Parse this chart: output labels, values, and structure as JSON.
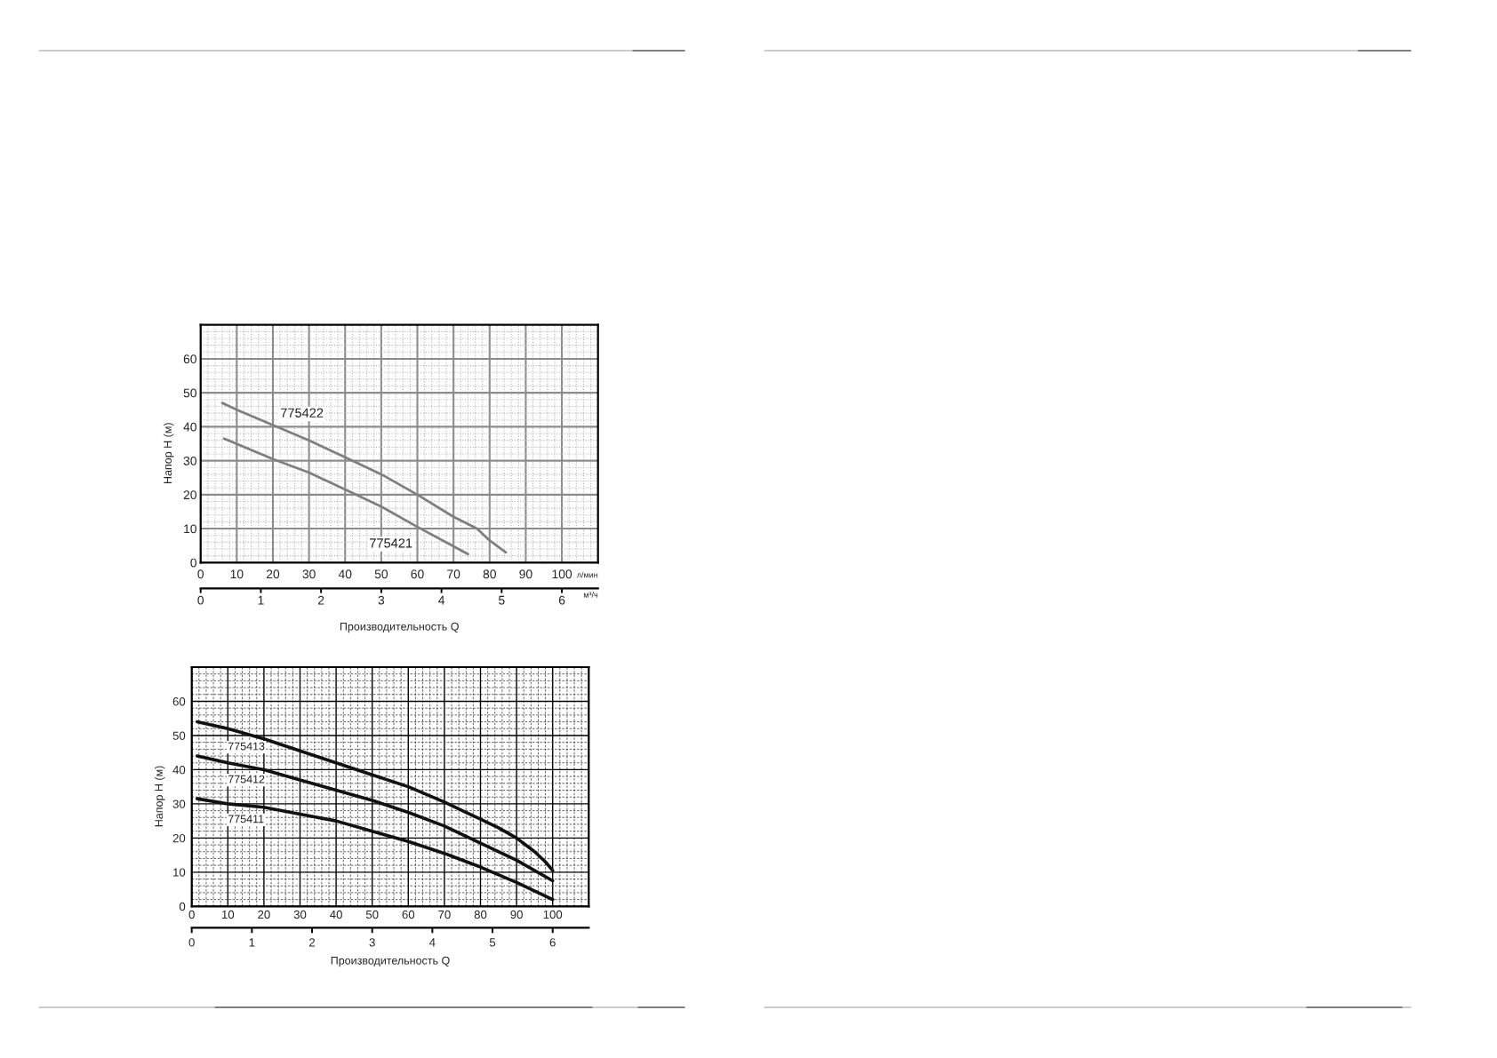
{
  "chart_data": [
    {
      "type": "line",
      "ylabel": "Напор H (м)",
      "xlabel": "л/мин",
      "x2label": "м³/ч",
      "annotations": [
        "Производительность Q"
      ],
      "grid": true,
      "xlim": [
        0,
        110
      ],
      "ylim": [
        0,
        70
      ],
      "x2lim": [
        0,
        6.6
      ],
      "xticks": [
        0,
        {
          "value": 2,
          "label": null
        },
        {
          "value": 4,
          "label": null
        },
        {
          "value": 6,
          "label": null
        },
        {
          "value": 8,
          "label": null
        },
        10,
        {
          "value": 12,
          "label": null
        },
        {
          "value": 14,
          "label": null
        },
        {
          "value": 16,
          "label": null
        },
        {
          "value": 18,
          "label": null
        },
        20,
        {
          "value": 22,
          "label": null
        },
        {
          "value": 24,
          "label": null
        },
        {
          "value": 26,
          "label": null
        },
        {
          "value": 28,
          "label": null
        },
        30,
        {
          "value": 32,
          "label": null
        },
        {
          "value": 34,
          "label": null
        },
        {
          "value": 36,
          "label": null
        },
        {
          "value": 38,
          "label": null
        },
        40,
        {
          "value": 42,
          "label": null
        },
        {
          "value": 44,
          "label": null
        },
        {
          "value": 46,
          "label": null
        },
        {
          "value": 48,
          "label": null
        },
        50,
        {
          "value": 52,
          "label": null
        },
        {
          "value": 54,
          "label": null
        },
        {
          "value": 56,
          "label": null
        },
        {
          "value": 58,
          "label": null
        },
        60,
        {
          "value": 62,
          "label": null
        },
        {
          "value": 64,
          "label": null
        },
        {
          "value": 66,
          "label": null
        },
        {
          "value": 68,
          "label": null
        },
        70,
        {
          "value": 72,
          "label": null
        },
        {
          "value": 74,
          "label": null
        },
        {
          "value": 76,
          "label": null
        },
        {
          "value": 78,
          "label": null
        },
        80,
        {
          "value": 82,
          "label": null
        },
        {
          "value": 84,
          "label": null
        },
        {
          "value": 86,
          "label": null
        },
        {
          "value": 88,
          "label": null
        },
        90,
        {
          "value": 92,
          "label": null
        },
        {
          "value": 94,
          "label": null
        },
        {
          "value": 96,
          "label": null
        },
        {
          "value": 98,
          "label": null
        },
        100,
        {
          "value": 102,
          "label": null
        },
        {
          "value": 104,
          "label": null
        },
        {
          "value": 106,
          "label": null
        },
        {
          "value": 108,
          "label": null
        }
      ],
      "yticks": [
        0,
        {
          "value": 2,
          "label": null
        },
        {
          "value": 4,
          "label": null
        },
        {
          "value": 6,
          "label": null
        },
        {
          "value": 8,
          "label": null
        },
        10,
        {
          "value": 12,
          "label": null
        },
        {
          "value": 14,
          "label": null
        },
        {
          "value": 16,
          "label": null
        },
        {
          "value": 18,
          "label": null
        },
        20,
        {
          "value": 22,
          "label": null
        },
        {
          "value": 24,
          "label": null
        },
        {
          "value": 26,
          "label": null
        },
        {
          "value": 28,
          "label": null
        },
        30,
        {
          "value": 32,
          "label": null
        },
        {
          "value": 34,
          "label": null
        },
        {
          "value": 36,
          "label": null
        },
        {
          "value": 38,
          "label": null
        },
        40,
        {
          "value": 42,
          "label": null
        },
        {
          "value": 44,
          "label": null
        },
        {
          "value": 46,
          "label": null
        },
        {
          "value": 48,
          "label": null
        },
        50,
        {
          "value": 52,
          "label": null
        },
        {
          "value": 54,
          "label": null
        },
        {
          "value": 56,
          "label": null
        },
        {
          "value": 58,
          "label": null
        },
        60,
        {
          "value": 62,
          "label": null
        },
        {
          "value": 64,
          "label": null
        },
        {
          "value": 66,
          "label": null
        },
        {
          "value": 68,
          "label": null
        }
      ],
      "x2ticks": [
        0,
        1,
        2,
        3,
        4,
        5,
        6
      ],
      "series": [
        {
          "name": "775422",
          "color": "#7f7f7f",
          "x": [
            6,
            10,
            20,
            30,
            43,
            50,
            60,
            70,
            76.5,
            80,
            84.5
          ],
          "values": [
            47,
            45,
            40.5,
            36,
            29.5,
            26,
            20,
            13.5,
            10,
            6.5,
            3
          ]
        },
        {
          "name": "775421",
          "color": "#7f7f7f",
          "x": [
            6.5,
            20,
            30,
            40,
            50,
            60,
            74
          ],
          "values": [
            36.5,
            30.5,
            26.5,
            21.5,
            16.5,
            10.5,
            2.5
          ]
        }
      ]
    },
    {
      "type": "line",
      "ylabel": "Напор H (м)",
      "annotations": [
        "Производительность Q"
      ],
      "grid": true,
      "xlim": [
        0,
        110
      ],
      "ylim": [
        0,
        70
      ],
      "x2lim": [
        0,
        6.6
      ],
      "xticks": [
        0,
        {
          "value": 2,
          "label": null
        },
        {
          "value": 4,
          "label": null
        },
        {
          "value": 6,
          "label": null
        },
        {
          "value": 8,
          "label": null
        },
        10,
        {
          "value": 12,
          "label": null
        },
        {
          "value": 14,
          "label": null
        },
        {
          "value": 16,
          "label": null
        },
        {
          "value": 18,
          "label": null
        },
        20,
        {
          "value": 22,
          "label": null
        },
        {
          "value": 24,
          "label": null
        },
        {
          "value": 26,
          "label": null
        },
        {
          "value": 28,
          "label": null
        },
        30,
        {
          "value": 32,
          "label": null
        },
        {
          "value": 34,
          "label": null
        },
        {
          "value": 36,
          "label": null
        },
        {
          "value": 38,
          "label": null
        },
        40,
        {
          "value": 42,
          "label": null
        },
        {
          "value": 44,
          "label": null
        },
        {
          "value": 46,
          "label": null
        },
        {
          "value": 48,
          "label": null
        },
        50,
        {
          "value": 52,
          "label": null
        },
        {
          "value": 54,
          "label": null
        },
        {
          "value": 56,
          "label": null
        },
        {
          "value": 58,
          "label": null
        },
        60,
        {
          "value": 62,
          "label": null
        },
        {
          "value": 64,
          "label": null
        },
        {
          "value": 66,
          "label": null
        },
        {
          "value": 68,
          "label": null
        },
        70,
        {
          "value": 72,
          "label": null
        },
        {
          "value": 74,
          "label": null
        },
        {
          "value": 76,
          "label": null
        },
        {
          "value": 78,
          "label": null
        },
        80,
        {
          "value": 82,
          "label": null
        },
        {
          "value": 84,
          "label": null
        },
        {
          "value": 86,
          "label": null
        },
        {
          "value": 88,
          "label": null
        },
        90,
        {
          "value": 92,
          "label": null
        },
        {
          "value": 94,
          "label": null
        },
        {
          "value": 96,
          "label": null
        },
        {
          "value": 98,
          "label": null
        },
        100,
        {
          "value": 102,
          "label": null
        },
        {
          "value": 104,
          "label": null
        },
        {
          "value": 106,
          "label": null
        },
        {
          "value": 108,
          "label": null
        }
      ],
      "yticks": [
        0,
        {
          "value": 2,
          "label": null
        },
        {
          "value": 4,
          "label": null
        },
        {
          "value": 6,
          "label": null
        },
        {
          "value": 8,
          "label": null
        },
        10,
        {
          "value": 12,
          "label": null
        },
        {
          "value": 14,
          "label": null
        },
        {
          "value": 16,
          "label": null
        },
        {
          "value": 18,
          "label": null
        },
        20,
        {
          "value": 22,
          "label": null
        },
        {
          "value": 24,
          "label": null
        },
        {
          "value": 26,
          "label": null
        },
        {
          "value": 28,
          "label": null
        },
        30,
        {
          "value": 32,
          "label": null
        },
        {
          "value": 34,
          "label": null
        },
        {
          "value": 36,
          "label": null
        },
        {
          "value": 38,
          "label": null
        },
        40,
        {
          "value": 42,
          "label": null
        },
        {
          "value": 44,
          "label": null
        },
        {
          "value": 46,
          "label": null
        },
        {
          "value": 48,
          "label": null
        },
        50,
        {
          "value": 52,
          "label": null
        },
        {
          "value": 54,
          "label": null
        },
        {
          "value": 56,
          "label": null
        },
        {
          "value": 58,
          "label": null
        },
        60,
        {
          "value": 62,
          "label": null
        },
        {
          "value": 64,
          "label": null
        },
        {
          "value": 66,
          "label": null
        },
        {
          "value": 68,
          "label": null
        }
      ],
      "x2ticks": [
        0,
        1,
        2,
        3,
        4,
        5,
        6
      ],
      "series": [
        {
          "name": "775413",
          "color": "#111111",
          "x": [
            1.5,
            10,
            20,
            30,
            40,
            50,
            60,
            70,
            75,
            80,
            85,
            90,
            95,
            98,
            100
          ],
          "values": [
            54,
            52,
            49,
            45.5,
            42,
            38.5,
            35,
            30.5,
            28,
            25.5,
            23,
            20,
            16,
            13,
            10.5
          ]
        },
        {
          "name": "775412",
          "color": "#111111",
          "x": [
            1.5,
            10,
            20,
            30,
            40,
            50,
            60,
            70,
            80,
            90,
            100
          ],
          "values": [
            44,
            42,
            40,
            37,
            34,
            31,
            27.5,
            23.5,
            18.5,
            13.5,
            7.5
          ]
        },
        {
          "name": "775411",
          "color": "#111111",
          "x": [
            1.5,
            10,
            20,
            30,
            40,
            50,
            60,
            70,
            80,
            90,
            100
          ],
          "values": [
            31.5,
            30,
            29,
            27,
            25,
            22,
            19,
            15.5,
            11.5,
            7,
            2
          ]
        }
      ]
    }
  ]
}
